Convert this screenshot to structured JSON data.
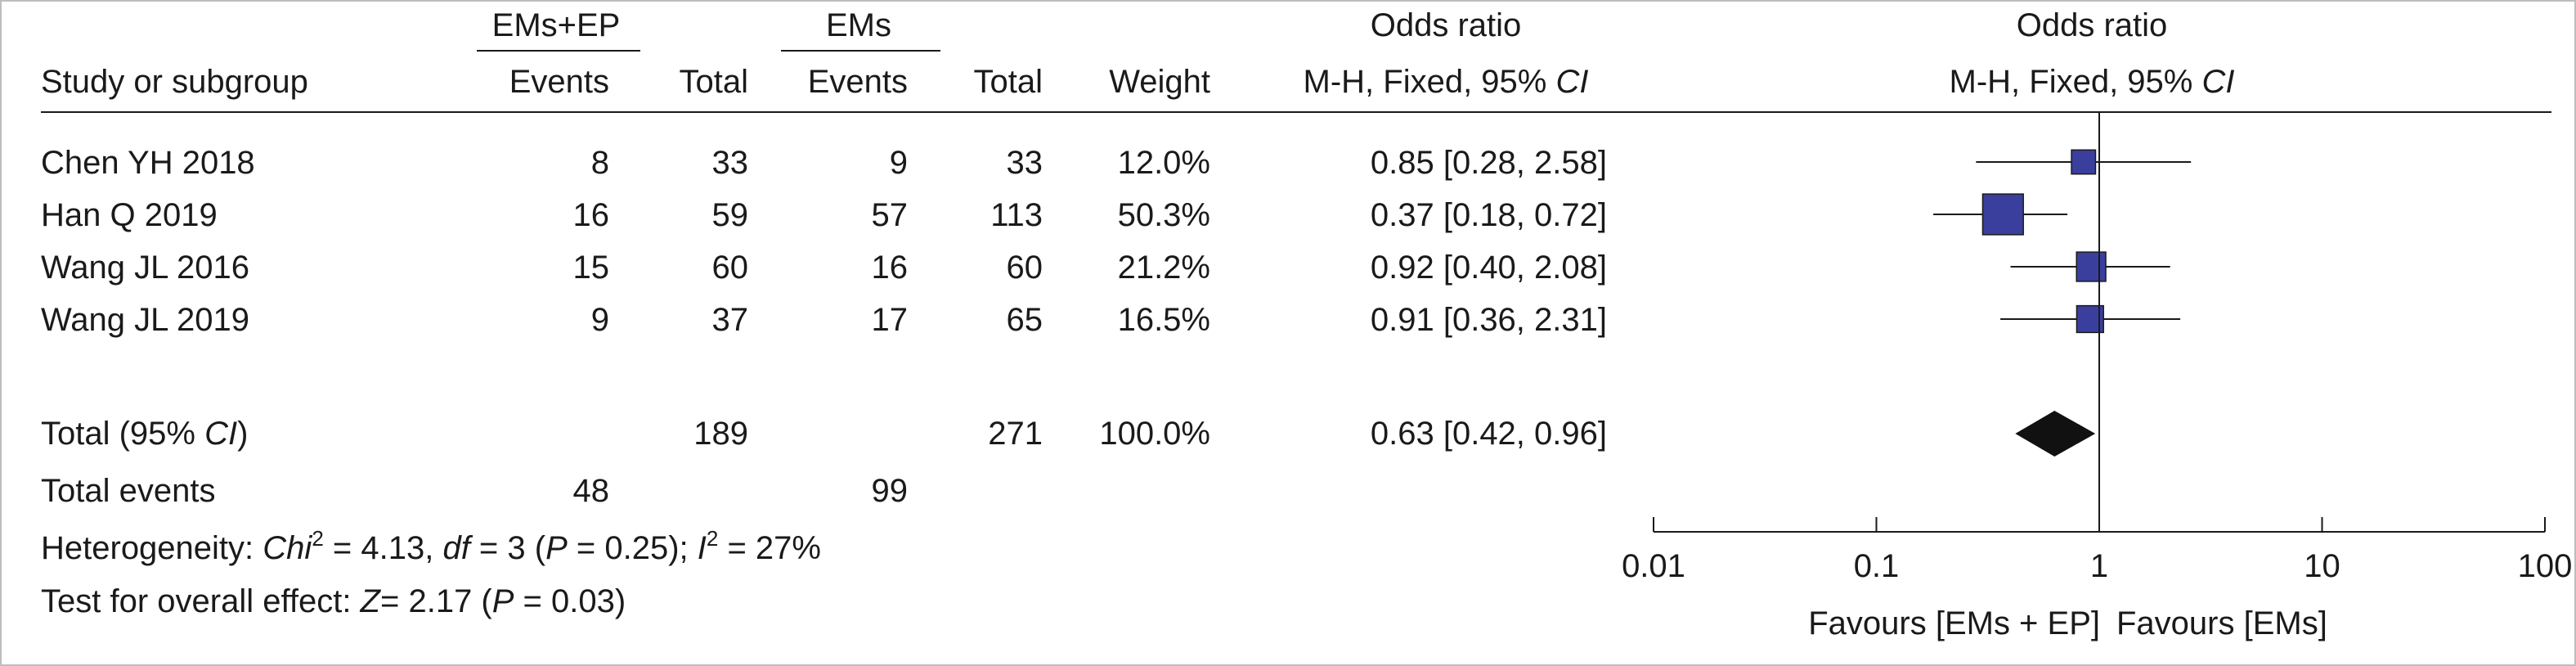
{
  "group_headers": {
    "exp": "EMs+EP",
    "ctrl": "EMs"
  },
  "columns": {
    "study": "Study or subgroup",
    "exp_events": "Events",
    "exp_total": "Total",
    "ctrl_events": "Events",
    "ctrl_total": "Total",
    "weight": "Weight",
    "or_title": "Odds ratio",
    "or_method": "M-H, Fixed, 95% ",
    "or_ci": "CI",
    "plot_title": "Odds ratio",
    "plot_method": "M-H, Fixed, 95% ",
    "plot_ci": "CI"
  },
  "totals": {
    "label_pre": "Total (95% ",
    "label_ci": "CI",
    "label_post": ")",
    "exp_total": "189",
    "ctrl_total": "271",
    "weight": "100.0%",
    "or_text": "0.63 [0.42, 0.96]"
  },
  "total_events": {
    "label": "Total events",
    "exp": "48",
    "ctrl": "99"
  },
  "heterogeneity": {
    "prefix": "Heterogeneity: ",
    "chi": "Chi",
    "chi_sup": "2",
    "chi_val": " = 4.13, ",
    "df": "df",
    "df_val": " = 3 (",
    "p": "P",
    "p_val": " = 0.25); ",
    "i": "I",
    "i_sup": "2",
    "i_val": " = 27%"
  },
  "overall_effect": {
    "prefix": "Test for overall effect: ",
    "z": "Z",
    "z_val": "= 2.17 (",
    "p": "P",
    "p_val": " = 0.03)"
  },
  "favours": {
    "left": "Favours [EMs + EP]",
    "right": "Favours [EMs]"
  },
  "colors": {
    "marker": "#3a3f9e",
    "diamond": "#111111",
    "line": "#1a1a1a"
  },
  "chart_data": {
    "type": "forest",
    "x_scale": "log",
    "xlim": [
      0.01,
      100
    ],
    "ticks": [
      0.01,
      0.1,
      1,
      10,
      100
    ],
    "tick_labels": [
      "0.01",
      "0.1",
      "1",
      "10",
      "100"
    ],
    "null_value": 1,
    "studies": [
      {
        "name": "Chen YH 2018",
        "exp_events": 8,
        "exp_total": 33,
        "ctrl_events": 9,
        "ctrl_total": 33,
        "weight": "12.0%",
        "or": 0.85,
        "lo": 0.28,
        "hi": 2.58,
        "or_text": "0.85 [0.28, 2.58]",
        "w": 12.0
      },
      {
        "name": "Han Q 2019",
        "exp_events": 16,
        "exp_total": 59,
        "ctrl_events": 57,
        "ctrl_total": 113,
        "weight": "50.3%",
        "or": 0.37,
        "lo": 0.18,
        "hi": 0.72,
        "or_text": "0.37 [0.18, 0.72]",
        "w": 50.3
      },
      {
        "name": "Wang JL 2016",
        "exp_events": 15,
        "exp_total": 60,
        "ctrl_events": 16,
        "ctrl_total": 60,
        "weight": "21.2%",
        "or": 0.92,
        "lo": 0.4,
        "hi": 2.08,
        "or_text": "0.92 [0.40, 2.08]",
        "w": 21.2
      },
      {
        "name": "Wang JL 2019",
        "exp_events": 9,
        "exp_total": 37,
        "ctrl_events": 17,
        "ctrl_total": 65,
        "weight": "16.5%",
        "or": 0.91,
        "lo": 0.36,
        "hi": 2.31,
        "or_text": "0.91 [0.36, 2.31]",
        "w": 16.5
      }
    ],
    "pooled": {
      "or": 0.63,
      "lo": 0.42,
      "hi": 0.96
    }
  }
}
